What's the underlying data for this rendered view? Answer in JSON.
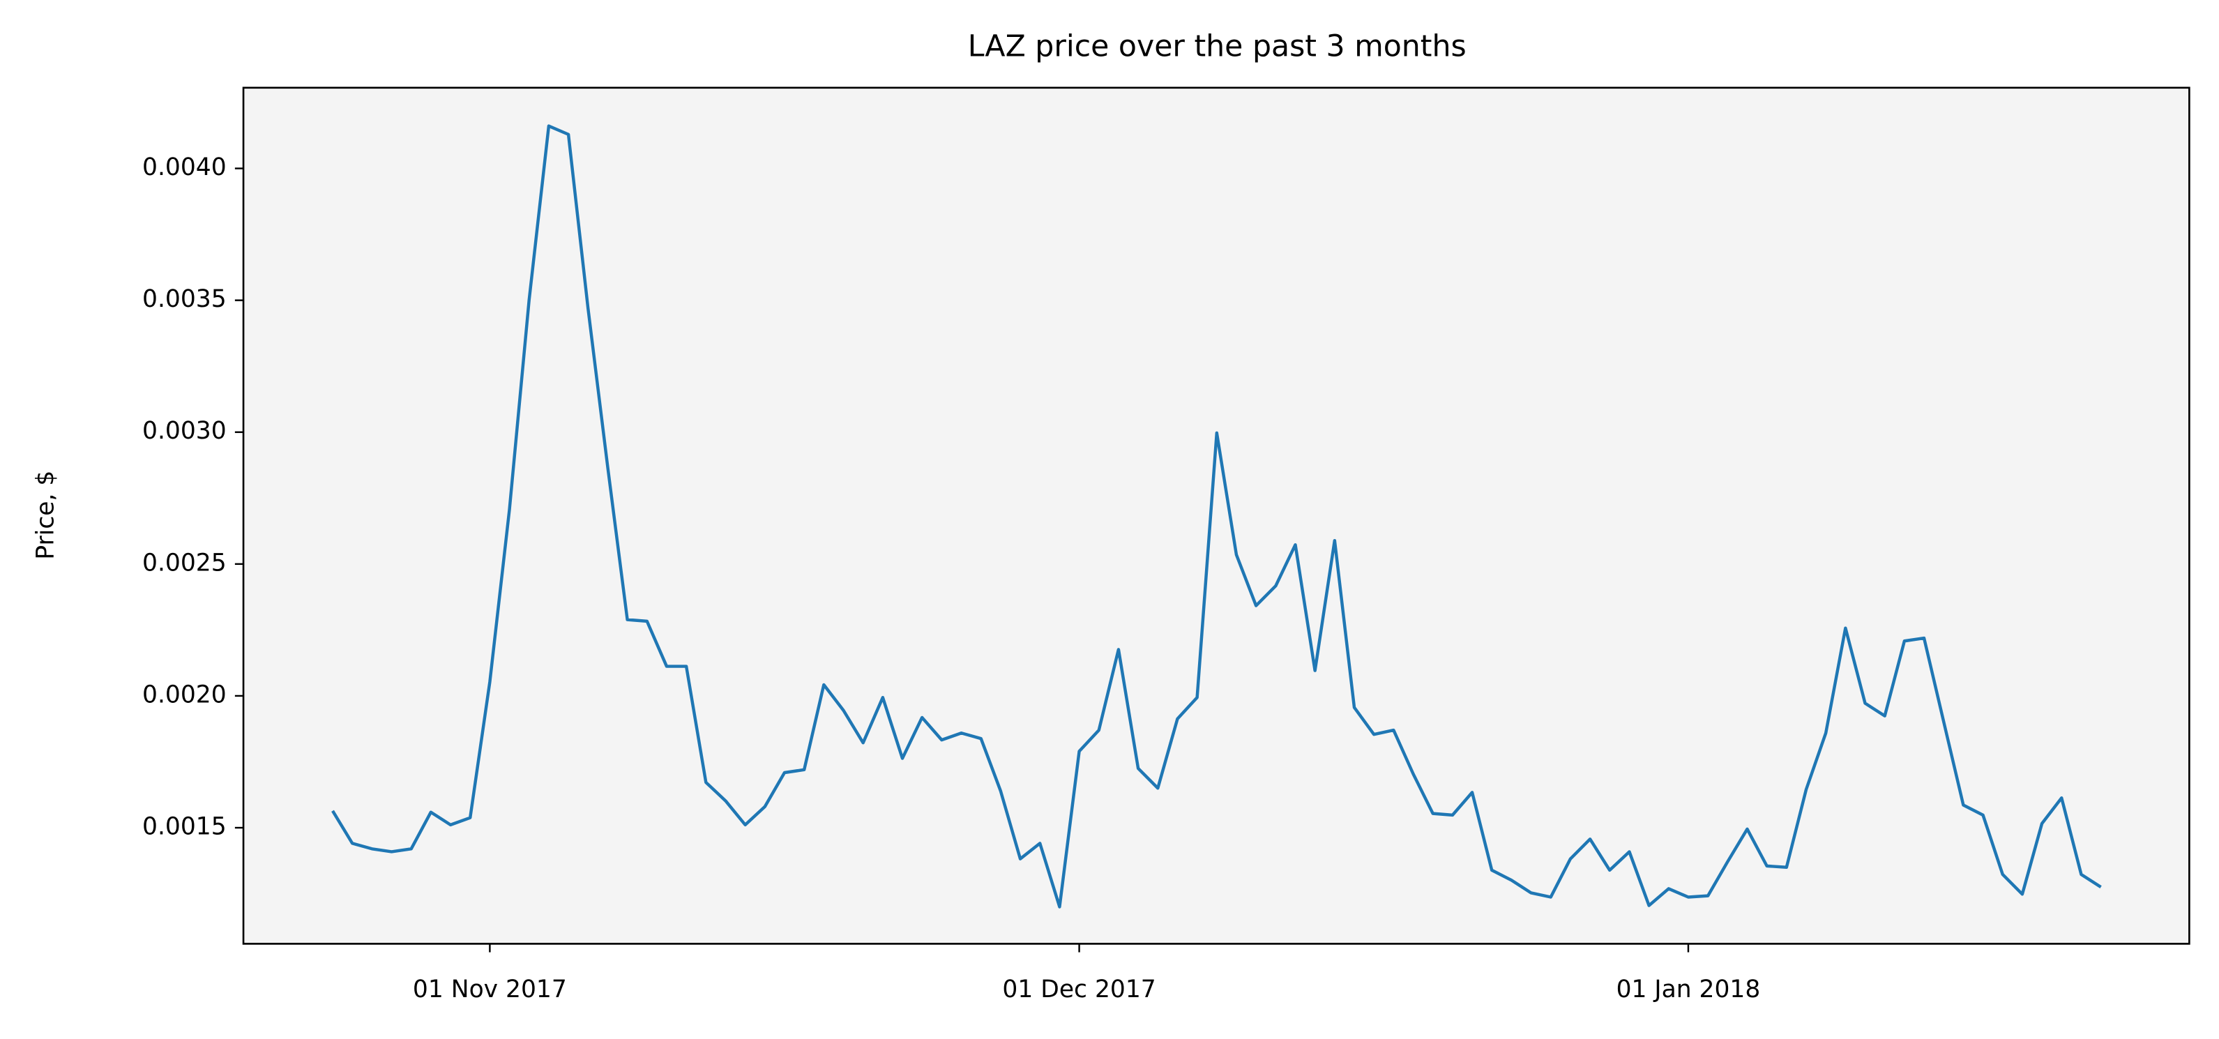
{
  "chart_data": {
    "type": "line",
    "title": "LAZ price over the past 3 months",
    "y_label": "Price, $",
    "x": [
      "2017-10-24",
      "2017-10-25",
      "2017-10-26",
      "2017-10-27",
      "2017-10-28",
      "2017-10-29",
      "2017-10-30",
      "2017-10-31",
      "2017-11-01",
      "2017-11-02",
      "2017-11-03",
      "2017-11-04",
      "2017-11-05",
      "2017-11-06",
      "2017-11-07",
      "2017-11-08",
      "2017-11-09",
      "2017-11-10",
      "2017-11-11",
      "2017-11-12",
      "2017-11-13",
      "2017-11-14",
      "2017-11-15",
      "2017-11-16",
      "2017-11-17",
      "2017-11-18",
      "2017-11-19",
      "2017-11-20",
      "2017-11-21",
      "2017-11-22",
      "2017-11-23",
      "2017-11-24",
      "2017-11-25",
      "2017-11-26",
      "2017-11-27",
      "2017-11-28",
      "2017-11-29",
      "2017-11-30",
      "2017-12-01",
      "2017-12-02",
      "2017-12-03",
      "2017-12-04",
      "2017-12-05",
      "2017-12-06",
      "2017-12-07",
      "2017-12-08",
      "2017-12-09",
      "2017-12-10",
      "2017-12-11",
      "2017-12-12",
      "2017-12-13",
      "2017-12-14",
      "2017-12-15",
      "2017-12-16",
      "2017-12-17",
      "2017-12-18",
      "2017-12-19",
      "2017-12-20",
      "2017-12-21",
      "2017-12-22",
      "2017-12-23",
      "2017-12-24",
      "2017-12-25",
      "2017-12-26",
      "2017-12-27",
      "2017-12-28",
      "2017-12-29",
      "2017-12-30",
      "2017-12-31",
      "2018-01-01",
      "2018-01-02",
      "2018-01-03",
      "2018-01-04",
      "2018-01-05",
      "2018-01-06",
      "2018-01-07",
      "2018-01-08",
      "2018-01-09",
      "2018-01-10",
      "2018-01-11",
      "2018-01-12",
      "2018-01-13",
      "2018-01-14",
      "2018-01-15",
      "2018-01-16",
      "2018-01-17",
      "2018-01-18",
      "2018-01-19",
      "2018-01-20",
      "2018-01-21",
      "2018-01-22"
    ],
    "series": [
      {
        "name": "LAZ",
        "color": "#1f77b4",
        "values": [
          0.001564,
          0.001441,
          0.00142,
          0.001409,
          0.00142,
          0.001559,
          0.001511,
          0.001538,
          0.002053,
          0.002707,
          0.003501,
          0.004161,
          0.004129,
          0.003469,
          0.002868,
          0.002289,
          0.002283,
          0.002112,
          0.002112,
          0.001672,
          0.001602,
          0.001511,
          0.00158,
          0.001709,
          0.00172,
          0.002042,
          0.001945,
          0.001822,
          0.001994,
          0.001763,
          0.001918,
          0.001833,
          0.001859,
          0.001838,
          0.001639,
          0.001382,
          0.001441,
          0.0012,
          0.00179,
          0.00187,
          0.002176,
          0.001725,
          0.00165,
          0.001913,
          0.001994,
          0.002997,
          0.002535,
          0.002342,
          0.002417,
          0.002573,
          0.002096,
          0.002589,
          0.001956,
          0.001854,
          0.00187,
          0.001704,
          0.001554,
          0.001548,
          0.001634,
          0.001339,
          0.001301,
          0.001253,
          0.001237,
          0.001382,
          0.001457,
          0.001339,
          0.001409,
          0.001205,
          0.001269,
          0.001237,
          0.001242,
          0.001371,
          0.001495,
          0.001355,
          0.00135,
          0.001645,
          0.001859,
          0.002257,
          0.001972,
          0.001924,
          0.002208,
          0.002219,
          0.001902,
          0.001586,
          0.001548,
          0.001323,
          0.001248,
          0.001516,
          0.001613,
          0.001323,
          0.001275
        ]
      }
    ],
    "xlim": [
      "2017-10-19T11:00",
      "2018-01-26T12:00"
    ],
    "xticks": [
      {
        "value": "2017-11-01",
        "label": "01 Nov 2017"
      },
      {
        "value": "2017-12-01",
        "label": "01 Dec 2017"
      },
      {
        "value": "2018-01-01",
        "label": "01 Jan 2018"
      }
    ],
    "ylim": [
      0.00106,
      0.004306
    ],
    "yticks": [
      0.0015,
      {
        "value": 0.002,
        "label": "0.0020"
      },
      0.0025,
      {
        "value": 0.003,
        "label": "0.0030"
      },
      0.0035,
      {
        "value": 0.004,
        "label": "0.0040"
      }
    ],
    "background": "#f4f4f4"
  }
}
